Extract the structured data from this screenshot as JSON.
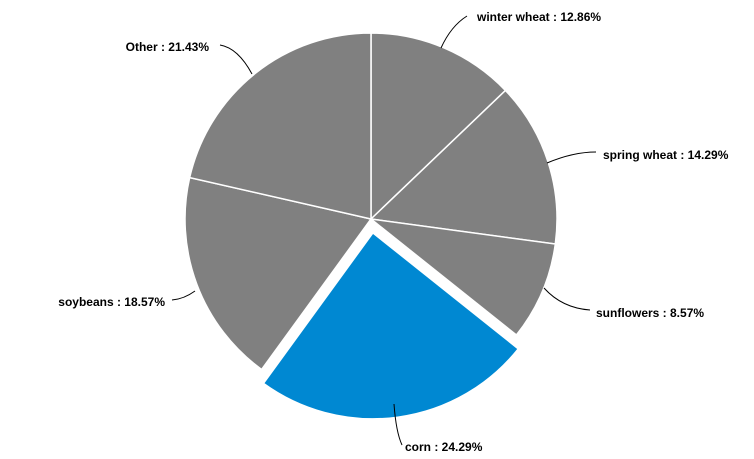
{
  "chart_data": {
    "type": "pie",
    "categories": [
      "winter wheat",
      "spring wheat",
      "sunflowers",
      "corn",
      "soybeans",
      "Other"
    ],
    "values": [
      12.86,
      14.29,
      8.57,
      24.29,
      18.57,
      21.43
    ],
    "labels": [
      "winter wheat : 12.86%",
      "spring wheat : 14.29%",
      "sunflowers : 8.57%",
      "corn : 24.29%",
      "soybeans : 18.57%",
      "Other : 21.43%"
    ],
    "colors": [
      "#808080",
      "#808080",
      "#808080",
      "#0088d2",
      "#808080",
      "#808080"
    ],
    "highlighted": "corn",
    "title": ""
  }
}
